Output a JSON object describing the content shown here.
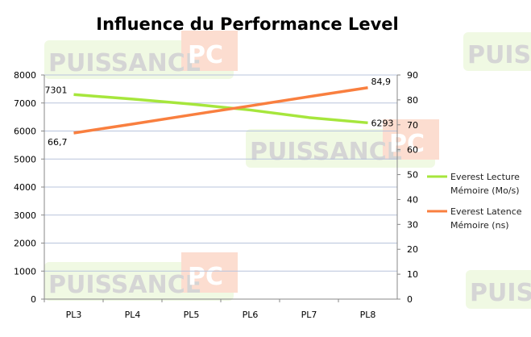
{
  "chart_data": {
    "type": "line",
    "title": "Influence du Performance Level",
    "categories": [
      "PL3",
      "PL4",
      "PL5",
      "PL6",
      "PL7",
      "PL8"
    ],
    "y_left": {
      "range": [
        0,
        8000
      ],
      "ticks": [
        0,
        1000,
        2000,
        3000,
        4000,
        5000,
        6000,
        7000,
        8000
      ]
    },
    "y_right": {
      "range": [
        0,
        90
      ],
      "ticks": [
        0,
        10,
        20,
        30,
        40,
        50,
        60,
        70,
        80,
        90
      ]
    },
    "grid": true,
    "legend_position": "right",
    "series": [
      {
        "name": "Everest Lecture Mémoire (Mo/s)",
        "name_lines": [
          "Everest Lecture",
          "Mémoire (Mo/s)"
        ],
        "axis": "left",
        "color": "#a6e63c",
        "values": [
          7301,
          7140,
          6960,
          6750,
          6480,
          6293
        ],
        "labels": {
          "0": "7301",
          "5": "6293"
        }
      },
      {
        "name": "Everest Latence Mémoire (ns)",
        "name_lines": [
          "Everest Latence",
          "Mémoire (ns)"
        ],
        "axis": "right",
        "color": "#f97f3f",
        "values": [
          66.7,
          70.3,
          74.0,
          77.6,
          81.3,
          84.9
        ],
        "labels": {
          "0": "66,7",
          "5": "84,9"
        }
      }
    ]
  },
  "watermark": {
    "text1": "PUISSANCE",
    "text2": "PC"
  }
}
